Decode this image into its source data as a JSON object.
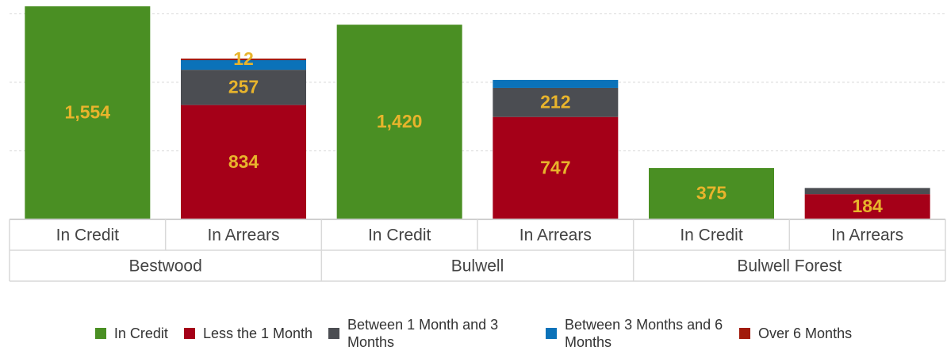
{
  "chart_data": {
    "type": "stacked_bar",
    "groups": [
      "Bestwood",
      "Bulwell",
      "Bulwell Forest"
    ],
    "categories": [
      "In Credit",
      "In Arrears",
      "In Credit",
      "In Arrears",
      "In Credit",
      "In Arrears"
    ],
    "series": [
      {
        "name": "In Credit",
        "color": "#4a8f23",
        "values": [
          1554,
          null,
          1420,
          null,
          375,
          null
        ],
        "value_labels": [
          "1,554",
          null,
          "1,420",
          null,
          "375",
          null
        ]
      },
      {
        "name": "Less the 1 Month",
        "color": "#a50018",
        "values": [
          null,
          834,
          null,
          747,
          null,
          184
        ],
        "value_labels": [
          null,
          "834",
          null,
          "747",
          null,
          "184"
        ]
      },
      {
        "name": "Between 1 Month and 3 Months",
        "color": "#4b4d52",
        "values": [
          null,
          257,
          null,
          212,
          null,
          45
        ],
        "value_labels": [
          null,
          "257",
          null,
          "212",
          null,
          null
        ]
      },
      {
        "name": "Between 3 Months and 6 Months",
        "color": "#0b72b9",
        "values": [
          null,
          70,
          null,
          58,
          null,
          null
        ],
        "value_labels": [
          null,
          null,
          null,
          null,
          null,
          null
        ]
      },
      {
        "name": "Over 6 Months",
        "color": "#a11b0b",
        "values": [
          null,
          12,
          null,
          null,
          null,
          null
        ],
        "value_labels": [
          null,
          "12",
          null,
          null,
          null,
          null
        ]
      }
    ],
    "ylim": [
      0,
      1600
    ],
    "yticks": [
      0,
      500,
      1000,
      1500
    ],
    "grid": true,
    "legend": "bottom",
    "label_color": "#e8b42c"
  }
}
